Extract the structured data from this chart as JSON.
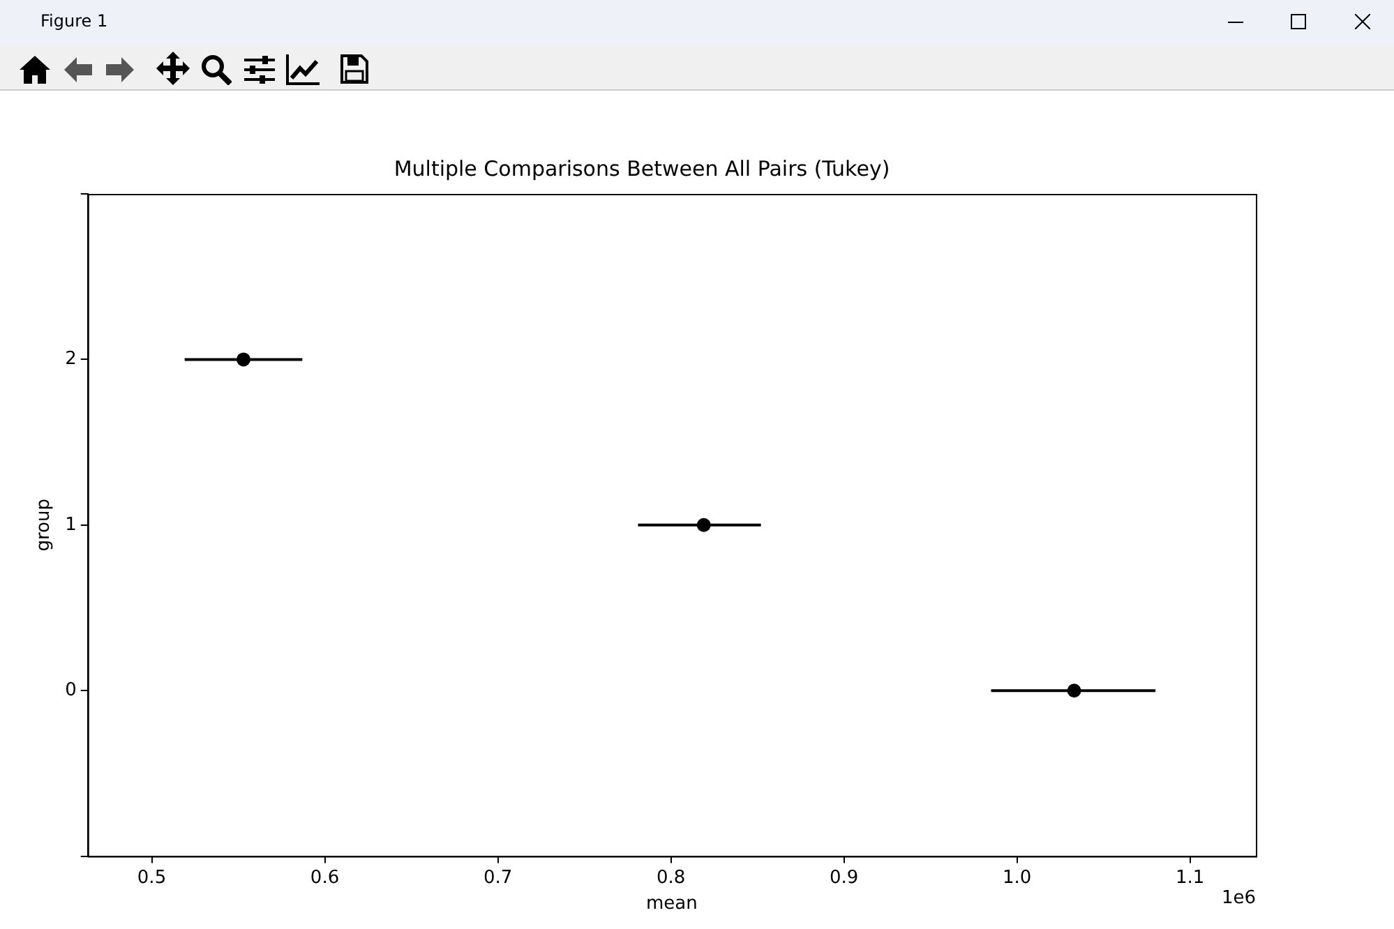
{
  "chart_data": {
    "type": "scatter",
    "title": "Multiple Comparisons Between All Pairs (Tukey)",
    "xlabel": "mean",
    "ylabel": "group",
    "x": [
      0.553,
      0.819,
      1.033
    ],
    "values": [
      2,
      1,
      0
    ],
    "xerrors": [
      [
        0.519,
        0.587
      ],
      [
        0.781,
        0.852
      ],
      [
        0.985,
        1.08
      ]
    ],
    "color": "#000000",
    "marker": "circle",
    "xlim": [
      0.463,
      1.138
    ],
    "ylim": [
      -1,
      3
    ],
    "xticks": [
      0.5,
      0.6,
      0.7,
      0.8,
      0.9,
      {
        "value": 1,
        "label": "1.0"
      },
      1.1
    ],
    "yticks": [
      {
        "value": -1,
        "label": null
      },
      0,
      1,
      2,
      {
        "value": 3,
        "label": null
      }
    ],
    "grid": false,
    "legend": false,
    "annotations": [
      "1e6",
      "Figure 1"
    ]
  }
}
